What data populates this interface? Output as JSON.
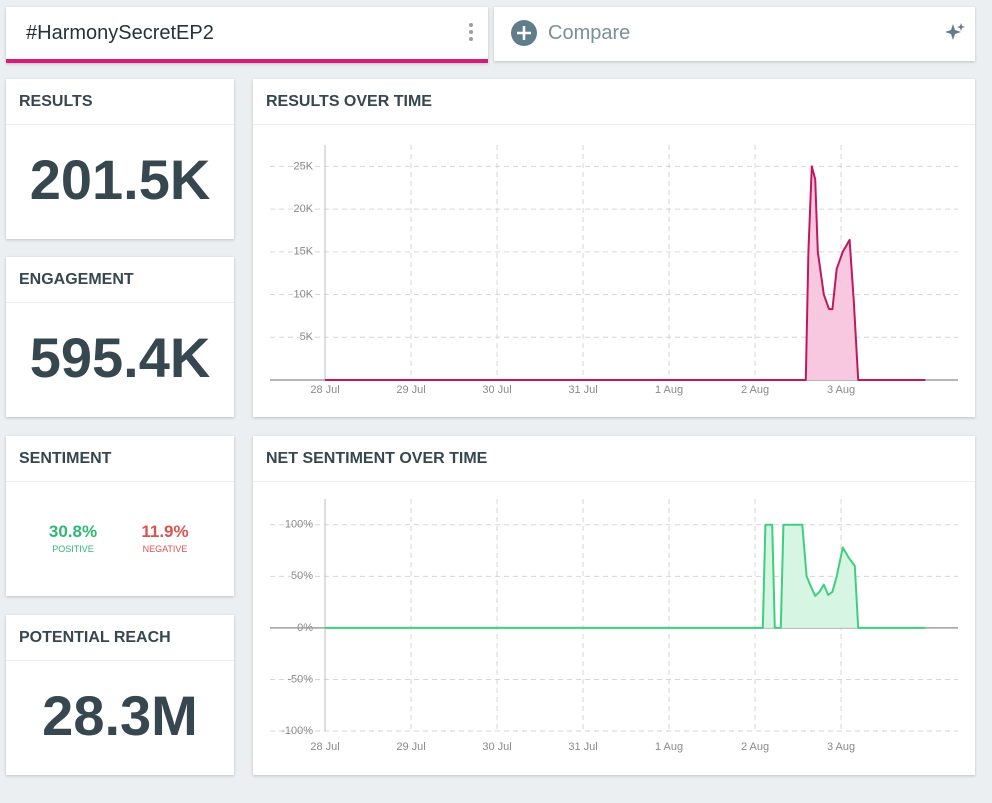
{
  "search": {
    "query": "#HarmonySecretEP2",
    "compare": "Compare"
  },
  "stats": [
    {
      "title": "RESULTS",
      "value": "201.5K"
    },
    {
      "title": "ENGAGEMENT",
      "value": "595.4K"
    },
    {
      "title": "POTENTIAL REACH",
      "value": "28.3M"
    }
  ],
  "sentiment": {
    "title": "SENTIMENT",
    "positive": {
      "value": "30.8%",
      "label": "POSITIVE",
      "color": "#2eb872"
    },
    "negative": {
      "value": "11.9%",
      "label": "NEGATIVE",
      "color": "#d9534f"
    }
  },
  "charts": [
    {
      "type": "area",
      "title": "RESULTS OVER TIME",
      "x": [
        0,
        5.59,
        5.62,
        5.66,
        5.7,
        5.73,
        5.8,
        5.86,
        5.9,
        5.95,
        6.02,
        6.1,
        6.15,
        6.2,
        6.98
      ],
      "xlim": [
        -0.64,
        7.36
      ],
      "xticks": [
        {
          "value": 0,
          "label": "28 Jul"
        },
        {
          "value": 1,
          "label": "29 Jul"
        },
        {
          "value": 2,
          "label": "30 Jul"
        },
        {
          "value": 3,
          "label": "31 Jul"
        },
        {
          "value": 4,
          "label": "1 Aug"
        },
        {
          "value": 5,
          "label": "2 Aug"
        },
        {
          "value": 6,
          "label": "3 Aug"
        }
      ],
      "ylim": [
        0,
        27500
      ],
      "yticks": [
        {
          "value": 5000,
          "label": "5K"
        },
        {
          "value": 10000,
          "label": "10K"
        },
        {
          "value": 15000,
          "label": "15K"
        },
        {
          "value": 20000,
          "label": "20K"
        },
        {
          "value": 25000,
          "label": "25K"
        }
      ],
      "grid": true,
      "series": [
        {
          "color": "#c2185b",
          "fill": "#f8c8e0",
          "values": [
            0,
            0,
            15000,
            25000,
            23500,
            15000,
            10000,
            8300,
            8300,
            13000,
            15000,
            16400,
            9000,
            0,
            0
          ]
        }
      ]
    },
    {
      "type": "area",
      "title": "NET SENTIMENT OVER TIME",
      "x": [
        0,
        5.09,
        5.12,
        5.2,
        5.23,
        5.3,
        5.33,
        5.55,
        5.6,
        5.65,
        5.7,
        5.75,
        5.8,
        5.85,
        5.9,
        5.95,
        6.02,
        6.09,
        6.16,
        6.2,
        6.22,
        6.98
      ],
      "xlim": [
        -0.64,
        7.36
      ],
      "xticks": [
        {
          "value": 0,
          "label": "28 Jul"
        },
        {
          "value": 1,
          "label": "29 Jul"
        },
        {
          "value": 2,
          "label": "30 Jul"
        },
        {
          "value": 3,
          "label": "31 Jul"
        },
        {
          "value": 4,
          "label": "1 Aug"
        },
        {
          "value": 5,
          "label": "2 Aug"
        },
        {
          "value": 6,
          "label": "3 Aug"
        }
      ],
      "ylim": [
        -100,
        125
      ],
      "yticks": [
        {
          "value": -100,
          "label": "-100%"
        },
        {
          "value": -50,
          "label": "-50%"
        },
        {
          "value": 0,
          "label": "0%"
        },
        {
          "value": 50,
          "label": "50%"
        },
        {
          "value": 100,
          "label": "100%"
        }
      ],
      "grid": true,
      "series": [
        {
          "color": "#3ecf7e",
          "fill": "#d7f5e3",
          "values": [
            0,
            0,
            100,
            100,
            0,
            0,
            100,
            100,
            50,
            40,
            31,
            35,
            42,
            32,
            35,
            50,
            78,
            68,
            60,
            0,
            0,
            0
          ]
        }
      ]
    }
  ]
}
